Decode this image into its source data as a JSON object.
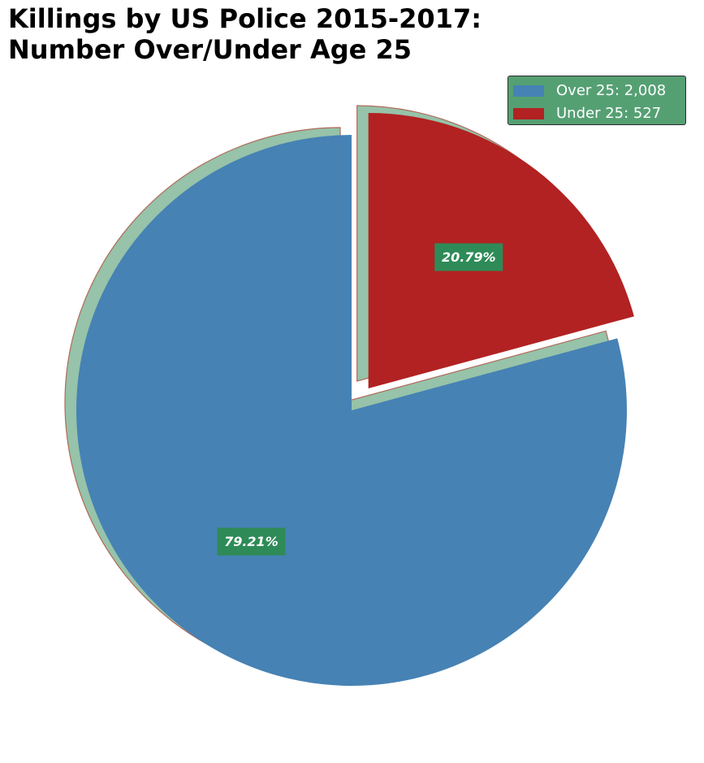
{
  "chart_data": {
    "type": "pie",
    "title_lines": [
      "Killings by US Police 2015-2017:",
      "Number Over/Under Age 25"
    ],
    "slices": [
      {
        "label": "Over 25",
        "value": 2008,
        "legend_text": "Over 25: 2,008",
        "percent_label": "79.21%",
        "color": "#4682b4",
        "exploded": false
      },
      {
        "label": "Under 25",
        "value": 527,
        "legend_text": "Under 25: 527",
        "percent_label": "20.79%",
        "color": "#b22222",
        "exploded": true
      }
    ],
    "start_angle": 90,
    "direction": "counterclockwise",
    "shadow": true,
    "shadow_color": "#96c3a9",
    "edge_color": "#b06a5a",
    "percent_label_box_color": "#2e8b57",
    "legend": {
      "position": "top-right",
      "background": "#55a073"
    }
  }
}
